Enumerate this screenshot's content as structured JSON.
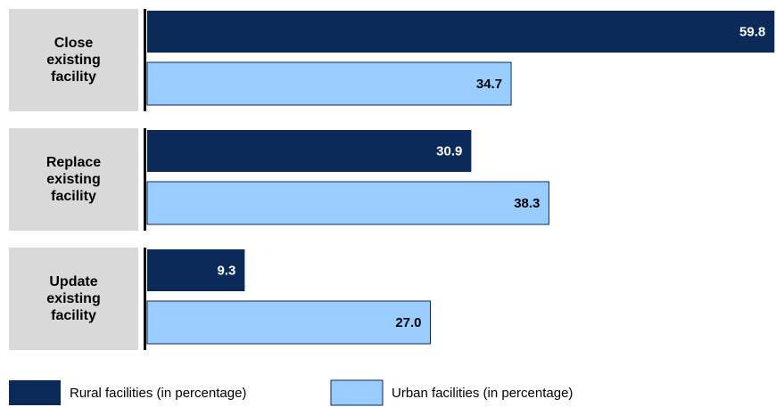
{
  "chart_data": {
    "type": "bar",
    "orientation": "horizontal",
    "categories": [
      "Close existing facility",
      "Replace existing facility",
      "Update existing facility"
    ],
    "series": [
      {
        "name": "Rural facilities (in percentage)",
        "color": "#0b2a5a",
        "values": [
          59.8,
          30.9,
          9.3
        ],
        "value_labels": [
          "59.8",
          "30.9",
          "9.3"
        ]
      },
      {
        "name": "Urban facilities (in percentage)",
        "color": "#99ccff",
        "values": [
          34.7,
          38.3,
          27.0
        ],
        "value_labels": [
          "34.7",
          "38.3",
          "27.0"
        ]
      }
    ]
  }
}
